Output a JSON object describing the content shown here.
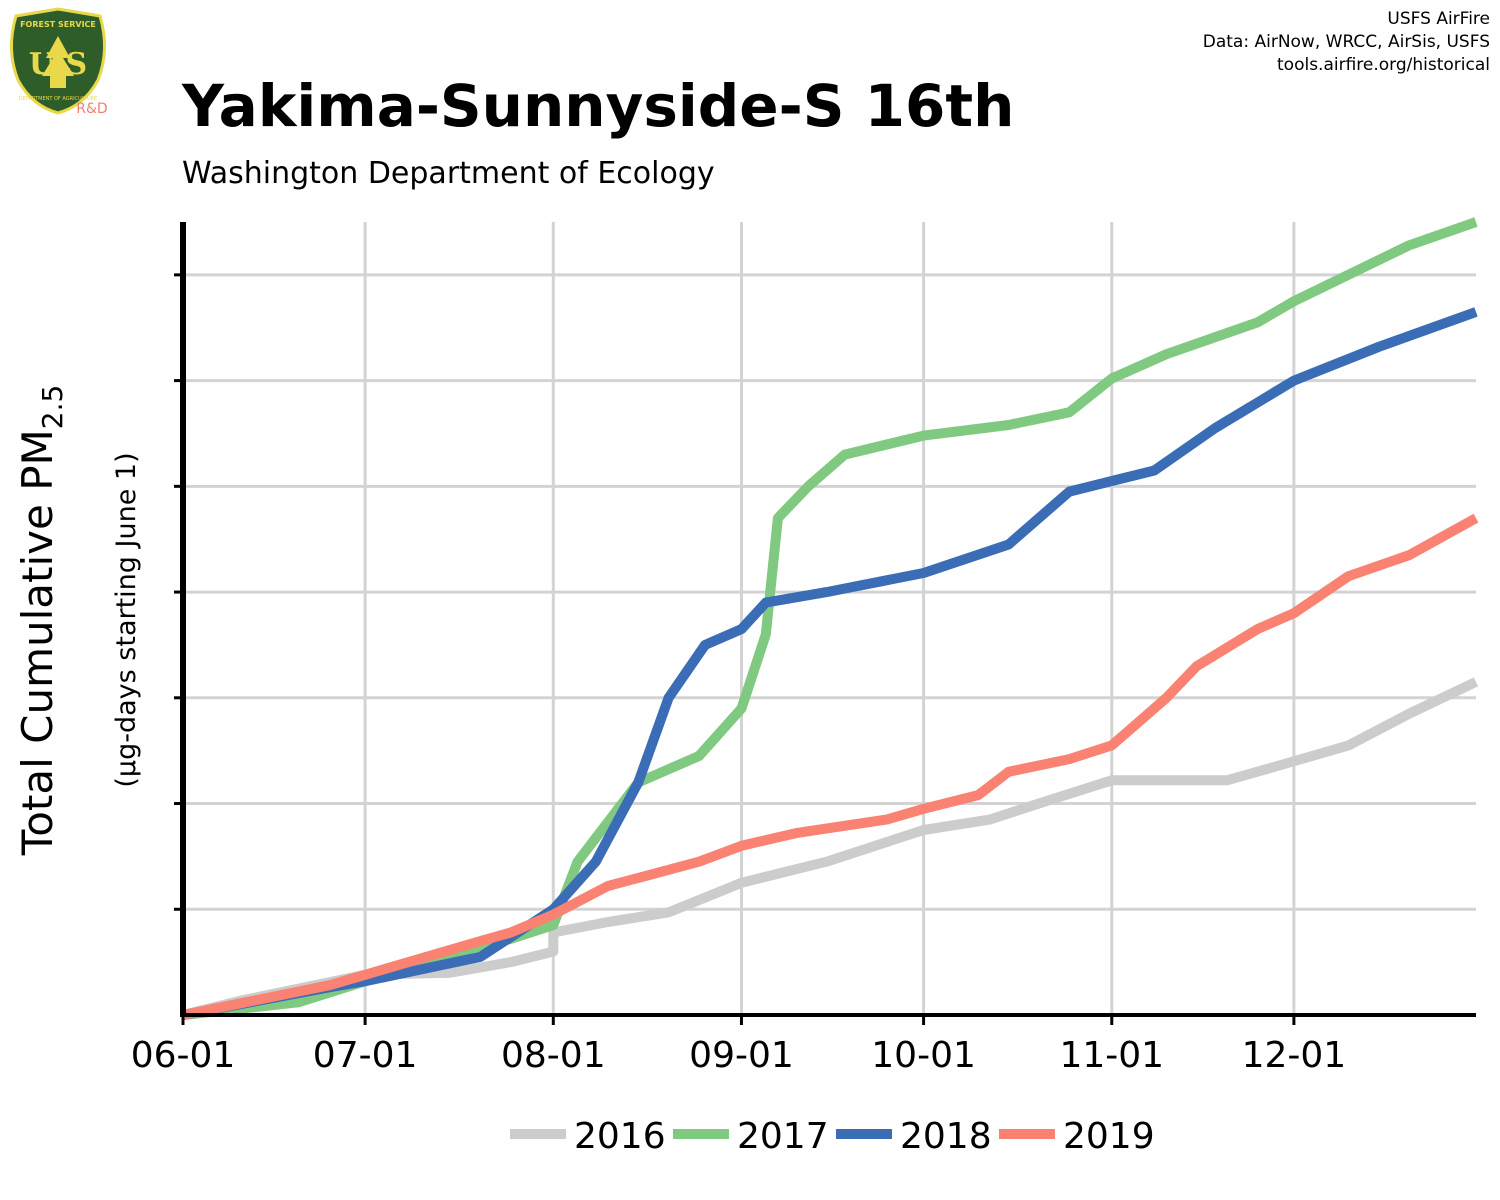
{
  "header": {
    "title": "Yakima-Sunnyside-S 16th",
    "subtitle": "Washington Department of Ecology",
    "credits": [
      "USFS AirFire",
      "Data: AirNow, WRCC, AirSis, USFS",
      "tools.airfire.org/historical"
    ]
  },
  "logo": {
    "top_text": "FOREST SERVICE",
    "letters": "U S",
    "bottom_text": "DEPARTMENT OF AGRICULTURE",
    "rd_label": "R&D",
    "colors": {
      "shield": "#2f5d2a",
      "trim": "#e8d84a",
      "rd": "#f08070"
    }
  },
  "chart_data": {
    "type": "line",
    "x_ticks": [
      "06-01",
      "07-01",
      "08-01",
      "09-01",
      "10-01",
      "11-01",
      "12-01"
    ],
    "xlim": [
      "06-01",
      "12-31"
    ],
    "ylim": [
      0,
      7.5
    ],
    "y_gridlines": [
      1,
      2,
      3,
      4,
      5,
      6,
      7
    ],
    "y_tick_labels_visible": false,
    "grid": true,
    "ylabel": "Total Cumulative PM",
    "ylabel_subscript": "2.5",
    "ylabel_note": "(µg-days starting June 1)",
    "legend_position": "bottom",
    "series": [
      {
        "name": "2016",
        "color": "#cccccc",
        "points": [
          [
            "06-01",
            0
          ],
          [
            "06-10",
            0.13
          ],
          [
            "07-01",
            0.38
          ],
          [
            "07-15",
            0.4
          ],
          [
            "07-25",
            0.5
          ],
          [
            "08-01",
            0.6
          ],
          [
            "08-01",
            0.78
          ],
          [
            "08-10",
            0.88
          ],
          [
            "08-20",
            0.97
          ],
          [
            "09-01",
            1.25
          ],
          [
            "09-15",
            1.45
          ],
          [
            "10-01",
            1.75
          ],
          [
            "10-12",
            1.85
          ],
          [
            "10-20",
            2.0
          ],
          [
            "11-01",
            2.22
          ],
          [
            "11-20",
            2.22
          ],
          [
            "11-28",
            2.35
          ],
          [
            "12-10",
            2.55
          ],
          [
            "12-20",
            2.85
          ],
          [
            "12-31",
            3.15
          ]
        ]
      },
      {
        "name": "2017",
        "color": "#80c980",
        "points": [
          [
            "06-01",
            0
          ],
          [
            "06-20",
            0.12
          ],
          [
            "07-01",
            0.32
          ],
          [
            "07-15",
            0.58
          ],
          [
            "07-25",
            0.72
          ],
          [
            "08-01",
            0.85
          ],
          [
            "08-05",
            1.45
          ],
          [
            "08-15",
            2.2
          ],
          [
            "08-25",
            2.45
          ],
          [
            "09-01",
            2.9
          ],
          [
            "09-05",
            3.6
          ],
          [
            "09-07",
            4.7
          ],
          [
            "09-12",
            5.0
          ],
          [
            "09-18",
            5.3
          ],
          [
            "10-01",
            5.48
          ],
          [
            "10-15",
            5.58
          ],
          [
            "10-25",
            5.7
          ],
          [
            "11-01",
            6.02
          ],
          [
            "11-10",
            6.25
          ],
          [
            "11-25",
            6.55
          ],
          [
            "12-01",
            6.75
          ],
          [
            "12-20",
            7.28
          ],
          [
            "12-31",
            7.5
          ]
        ]
      },
      {
        "name": "2018",
        "color": "#3a6db5",
        "points": [
          [
            "06-01",
            0
          ],
          [
            "06-25",
            0.26
          ],
          [
            "07-01",
            0.32
          ],
          [
            "07-20",
            0.55
          ],
          [
            "08-01",
            1.0
          ],
          [
            "08-08",
            1.45
          ],
          [
            "08-15",
            2.2
          ],
          [
            "08-20",
            3.0
          ],
          [
            "08-26",
            3.5
          ],
          [
            "09-01",
            3.65
          ],
          [
            "09-05",
            3.9
          ],
          [
            "09-15",
            4.0
          ],
          [
            "10-01",
            4.18
          ],
          [
            "10-15",
            4.45
          ],
          [
            "10-25",
            4.95
          ],
          [
            "11-01",
            5.05
          ],
          [
            "11-08",
            5.15
          ],
          [
            "11-18",
            5.55
          ],
          [
            "12-01",
            6.0
          ],
          [
            "12-15",
            6.32
          ],
          [
            "12-31",
            6.65
          ]
        ]
      },
      {
        "name": "2019",
        "color": "#f98273",
        "points": [
          [
            "06-01",
            0
          ],
          [
            "06-25",
            0.28
          ],
          [
            "07-01",
            0.38
          ],
          [
            "07-20",
            0.7
          ],
          [
            "07-25",
            0.78
          ],
          [
            "08-01",
            0.95
          ],
          [
            "08-10",
            1.22
          ],
          [
            "08-25",
            1.45
          ],
          [
            "09-01",
            1.6
          ],
          [
            "09-10",
            1.72
          ],
          [
            "09-25",
            1.85
          ],
          [
            "10-01",
            1.95
          ],
          [
            "10-10",
            2.08
          ],
          [
            "10-15",
            2.3
          ],
          [
            "10-25",
            2.42
          ],
          [
            "11-01",
            2.55
          ],
          [
            "11-10",
            3.0
          ],
          [
            "11-15",
            3.3
          ],
          [
            "11-25",
            3.65
          ],
          [
            "12-01",
            3.8
          ],
          [
            "12-10",
            4.15
          ],
          [
            "12-20",
            4.35
          ],
          [
            "12-31",
            4.7
          ]
        ]
      }
    ]
  }
}
